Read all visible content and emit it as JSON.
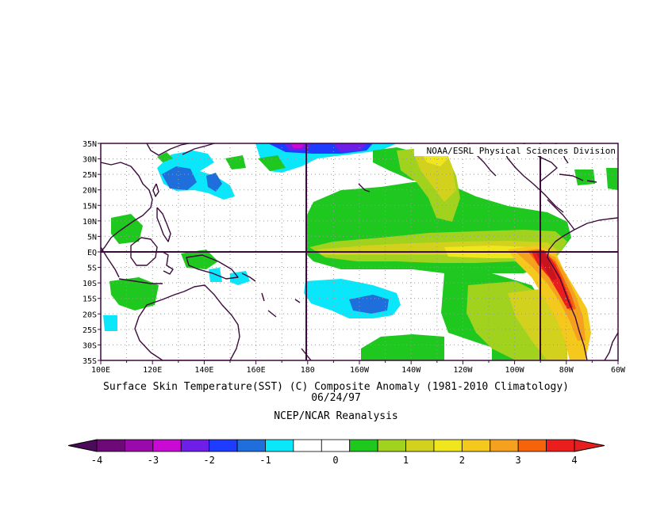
{
  "map": {
    "credit": "NOAA/ESRL Physical Sciences Division",
    "lat_labels": [
      "35N",
      "30N",
      "25N",
      "20N",
      "15N",
      "10N",
      "5N",
      "EQ",
      "5S",
      "10S",
      "15S",
      "20S",
      "25S",
      "30S",
      "35S"
    ],
    "lon_labels": [
      "100E",
      "120E",
      "140E",
      "160E",
      "180",
      "160W",
      "140W",
      "120W",
      "100W",
      "80W",
      "60W"
    ],
    "lat_range": [
      -35,
      35
    ],
    "lon_range": [
      100,
      300
    ],
    "reference_lines": {
      "longitudes": [
        180,
        270
      ],
      "latitudes": [
        0
      ]
    },
    "grid": "dotted",
    "land": "continent outlines, no fill"
  },
  "caption": {
    "line1": "Surface Skin Temperature(SST) (C) Composite Anomaly (1981-2010 Climatology)",
    "line2": "06/24/97",
    "line3": "NCEP/NCAR Reanalysis"
  },
  "colorbar": {
    "labels": [
      "-4",
      "-3",
      "-2",
      "-1",
      "0",
      "1",
      "2",
      "3",
      "4"
    ],
    "colors": [
      "#6e0a78",
      "#9a0aaa",
      "#c80ad2",
      "#6e1ee6",
      "#1e3cff",
      "#1e6edc",
      "#0ae6fa",
      "#ffffff",
      "#ffffff",
      "#1ec81e",
      "#a0d21e",
      "#d2d21e",
      "#f0e61e",
      "#f5c81e",
      "#f5a01e",
      "#f5640a",
      "#eb1e1e"
    ],
    "under_color": "#4b0a5a",
    "over_color": "#e61e1e"
  },
  "chart_data": {
    "type": "heatmap",
    "title": "Surface Skin Temperature(SST) (C) Composite Anomaly (1981-2010 Climatology)",
    "subtitle": "06/24/97",
    "source": "NCEP/NCAR Reanalysis",
    "x_range": [
      100,
      300
    ],
    "y_range": [
      -35,
      35
    ],
    "value_range": [
      -4,
      4
    ],
    "anomaly_regions": [
      {
        "region": "eastern equatorial Pacific, 0-10S near 80W-90W",
        "value_min": 3,
        "value_max": 4
      },
      {
        "region": "equatorial Pacific cold tongue, 180-90W",
        "value_min": 1,
        "value_max": 2.5
      },
      {
        "region": "Peru / Chile coast 10S-35S",
        "value_min": 2,
        "value_max": 3
      },
      {
        "region": "North Pacific 25N-35N, 150E-170W",
        "value_min": -3,
        "value_max": -1
      },
      {
        "region": "South Pacific 12S-22S, 180-150W",
        "value_min": -2,
        "value_max": -1
      }
    ]
  }
}
